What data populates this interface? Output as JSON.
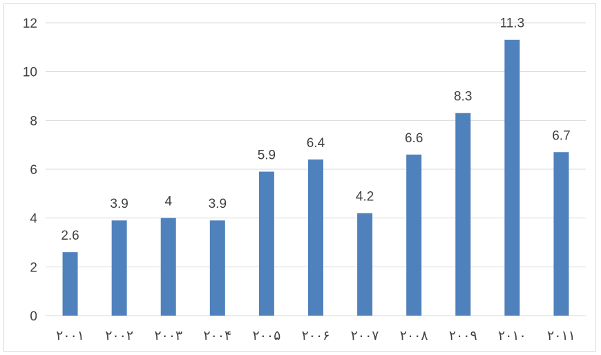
{
  "chart_data": {
    "type": "bar",
    "title": "",
    "xlabel": "",
    "ylabel": "",
    "categories": [
      "۲۰۰۱",
      "۲۰۰۲",
      "۲۰۰۳",
      "۲۰۰۴",
      "۲۰۰۵",
      "۲۰۰۶",
      "۲۰۰۷",
      "۲۰۰۸",
      "۲۰۰۹",
      "۲۰۱۰",
      "۲۰۱۱"
    ],
    "values": [
      2.6,
      3.9,
      4,
      3.9,
      5.9,
      6.4,
      4.2,
      6.6,
      8.3,
      11.3,
      6.7
    ],
    "data_labels": [
      "2.6",
      "3.9",
      "4",
      "3.9",
      "5.9",
      "6.4",
      "4.2",
      "6.6",
      "8.3",
      "11.3",
      "6.7"
    ],
    "ylim": [
      0,
      12
    ],
    "yticks": [
      "0",
      "2",
      "4",
      "6",
      "8",
      "10",
      "12"
    ],
    "grid": true,
    "legend": "none",
    "bar_color": "#4f81bd",
    "grid_color": "#d9d9d9",
    "text_color": "#404040"
  }
}
